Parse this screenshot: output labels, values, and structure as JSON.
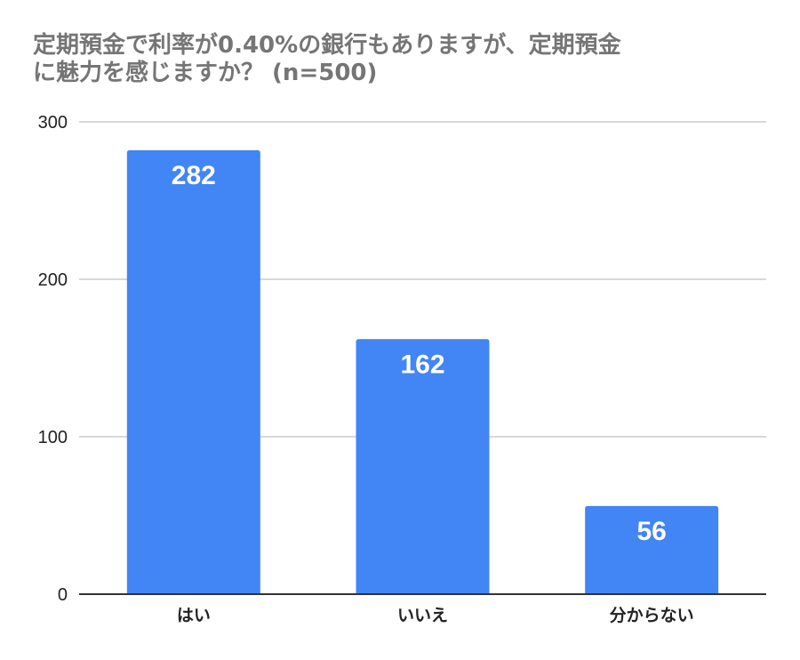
{
  "chart_data": {
    "type": "bar",
    "title_lines": [
      "定期預金で利率が0.40%の銀行もありますが、定期預金",
      "に魅力を感じますか？ (n=500)"
    ],
    "categories": [
      "はい",
      "いいえ",
      "分からない"
    ],
    "values": [
      282,
      162,
      56
    ],
    "ylim": [
      0,
      300
    ],
    "yticks": [
      0,
      100,
      200,
      300
    ],
    "grid": true,
    "legend": "none",
    "bar_color": "#4285f4",
    "grid_color": "#cccccc",
    "axis_color": "#333333"
  }
}
